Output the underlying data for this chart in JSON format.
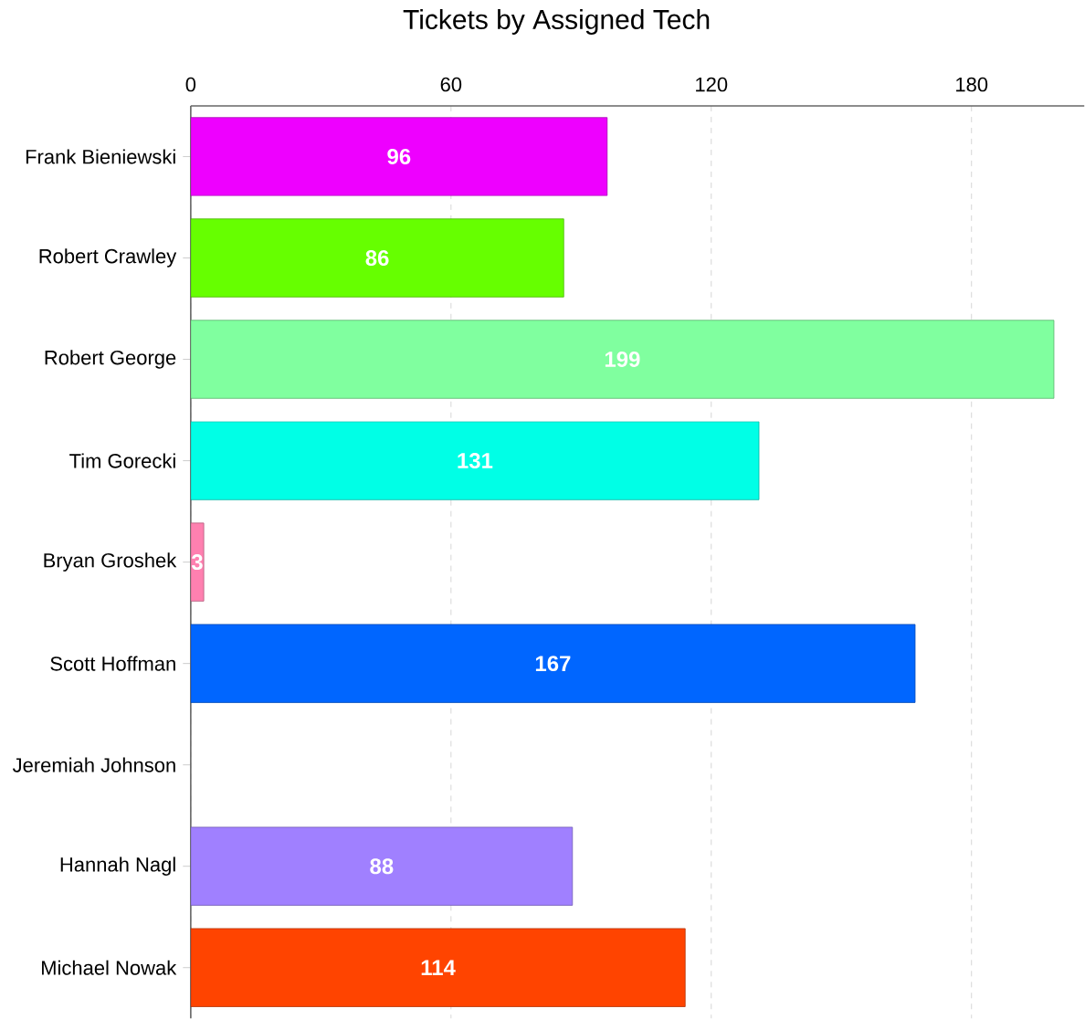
{
  "chart_data": {
    "type": "bar",
    "orientation": "horizontal",
    "title": "Tickets by Assigned Tech",
    "categories": [
      "Frank Bieniewski",
      "Robert Crawley",
      "Robert George",
      "Tim Gorecki",
      "Bryan Groshek",
      "Scott Hoffman",
      "Jeremiah Johnson",
      "Hannah Nagl",
      "Michael Nowak"
    ],
    "values": [
      96,
      86,
      199,
      131,
      3,
      167,
      null,
      88,
      114
    ],
    "colors": [
      "#ee00ff",
      "#66ff00",
      "#80ff9f",
      "#00ffe6",
      "#ff80b0",
      "#0066ff",
      "#888888",
      "#a080ff",
      "#ff4400"
    ],
    "xlim": [
      0,
      206
    ],
    "xticks": [
      0,
      60,
      120,
      180
    ],
    "grid": "x",
    "data_labels": true
  }
}
